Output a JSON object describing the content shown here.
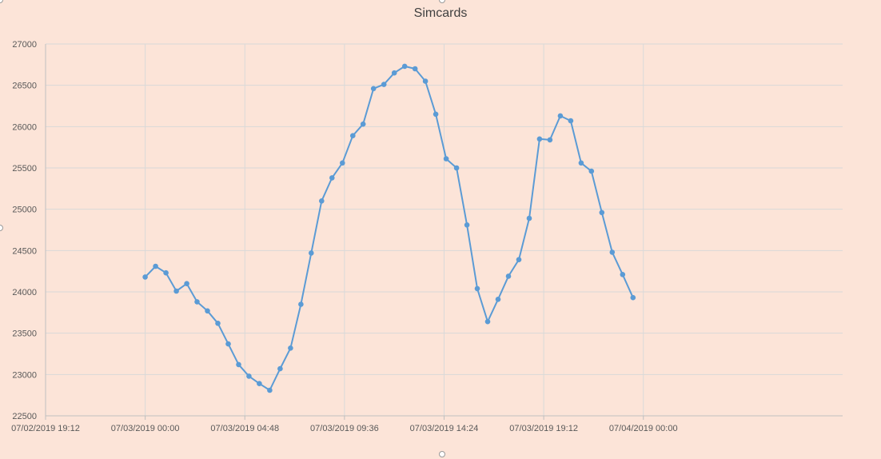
{
  "chart_data": {
    "type": "line",
    "title": "Simcards",
    "xlabel": "",
    "ylabel": "",
    "ylim": [
      22500,
      27000
    ],
    "yticks": [
      22500,
      23000,
      23500,
      24000,
      24500,
      25000,
      25500,
      26000,
      26500,
      27000
    ],
    "xlim_hours": [
      -4.8,
      33.6
    ],
    "x_axis_start": "07/02/2019 19:12",
    "xtick_labels": [
      "07/02/2019 19:12",
      "07/03/2019 00:00",
      "07/03/2019 04:48",
      "07/03/2019 09:36",
      "07/03/2019 14:24",
      "07/03/2019 19:12",
      "07/04/2019 00:00"
    ],
    "grid": true,
    "legend": "none",
    "line_color": "#5b9bd5",
    "series": [
      {
        "name": "",
        "x": [
          "07/03/2019 00:00",
          "07/03/2019 00:30",
          "07/03/2019 01:00",
          "07/03/2019 01:30",
          "07/03/2019 02:00",
          "07/03/2019 02:30",
          "07/03/2019 03:00",
          "07/03/2019 03:30",
          "07/03/2019 04:00",
          "07/03/2019 04:30",
          "07/03/2019 05:00",
          "07/03/2019 05:30",
          "07/03/2019 06:00",
          "07/03/2019 06:30",
          "07/03/2019 07:00",
          "07/03/2019 07:30",
          "07/03/2019 08:00",
          "07/03/2019 08:30",
          "07/03/2019 09:00",
          "07/03/2019 09:30",
          "07/03/2019 10:00",
          "07/03/2019 10:30",
          "07/03/2019 11:00",
          "07/03/2019 11:30",
          "07/03/2019 12:00",
          "07/03/2019 12:30",
          "07/03/2019 13:00",
          "07/03/2019 13:30",
          "07/03/2019 14:00",
          "07/03/2019 14:30",
          "07/03/2019 15:00",
          "07/03/2019 15:30",
          "07/03/2019 16:00",
          "07/03/2019 16:30",
          "07/03/2019 17:00",
          "07/03/2019 17:30",
          "07/03/2019 18:00",
          "07/03/2019 18:30",
          "07/03/2019 19:00",
          "07/03/2019 19:30",
          "07/03/2019 20:00",
          "07/03/2019 20:30",
          "07/03/2019 21:00",
          "07/03/2019 21:30",
          "07/03/2019 22:00",
          "07/03/2019 22:30",
          "07/03/2019 23:00",
          "07/03/2019 23:30"
        ],
        "values": [
          24180,
          24310,
          24230,
          24010,
          24100,
          23880,
          23770,
          23620,
          23370,
          23120,
          22980,
          22890,
          22810,
          23070,
          23320,
          23850,
          24470,
          25100,
          25380,
          25560,
          25890,
          26030,
          26460,
          26510,
          26650,
          26730,
          26700,
          26550,
          26150,
          25610,
          25500,
          24810,
          24040,
          23640,
          23910,
          24190,
          24390,
          24890,
          25850,
          25840,
          26130,
          26070,
          25560,
          25460,
          24960,
          24480,
          24210,
          23930
        ]
      }
    ]
  }
}
